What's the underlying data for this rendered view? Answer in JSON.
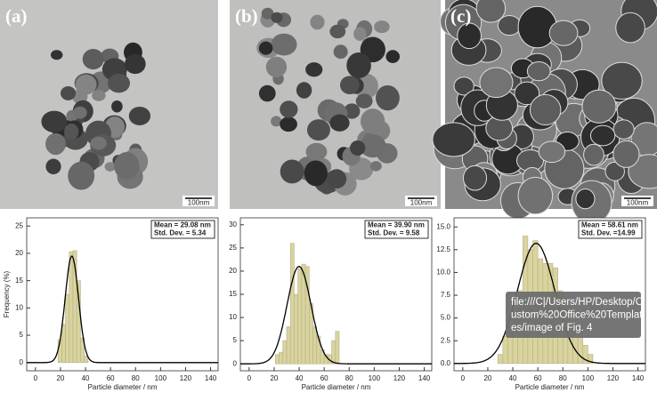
{
  "chart_data": [
    {
      "type": "histogram",
      "panel_label": "(a)",
      "image_scale_label": "100nm",
      "bins": [
        18,
        21,
        24,
        27,
        30,
        33,
        36,
        39,
        42
      ],
      "values": [
        4.2,
        7,
        12.5,
        20.3,
        20.5,
        15,
        4.5,
        1.2
      ],
      "color": "#d9d49c",
      "fit": {
        "mean": 29.08,
        "sd": 5.34,
        "peak": 19.5
      },
      "annotation": [
        "Mean = 29.08 nm",
        "Std. Dev. = 5.34"
      ],
      "xlim": [
        -7,
        146
      ],
      "xticks": [
        0,
        20,
        40,
        60,
        80,
        100,
        120,
        140
      ],
      "ylim": [
        -1.5,
        26.5
      ],
      "yticks": [
        0,
        5,
        10,
        15,
        20,
        25
      ],
      "xlabel": "Particle diameter / nm",
      "ylabel": "Frequency (%)"
    },
    {
      "type": "histogram",
      "panel_label": "(b)",
      "image_scale_label": "100nm",
      "bins": [
        21,
        24,
        27,
        30,
        33,
        36,
        39,
        42,
        45,
        48,
        51,
        54,
        57,
        60,
        63,
        66,
        69,
        72
      ],
      "values": [
        2,
        2.5,
        5,
        8,
        26,
        15,
        20.5,
        21.5,
        21,
        13,
        8,
        6,
        3,
        2,
        2,
        5,
        7
      ],
      "color": "#d9d49c",
      "fit": {
        "mean": 39.9,
        "sd": 9.58,
        "peak": 21
      },
      "annotation": [
        "Mean = 39.90 nm",
        "Std. Dev. = 9.58"
      ],
      "xlim": [
        -7,
        146
      ],
      "xticks": [
        0,
        20,
        40,
        60,
        80,
        100,
        120,
        140
      ],
      "ylim": [
        -1.5,
        31.5
      ],
      "yticks": [
        0,
        5,
        10,
        15,
        20,
        25,
        30
      ],
      "xlabel": "Particle diameter / nm"
    },
    {
      "type": "histogram",
      "panel_label": "(c)",
      "image_scale_label": "100nm",
      "bins": [
        28,
        32,
        36,
        40,
        44,
        48,
        52,
        56,
        60,
        64,
        68,
        72,
        76,
        80,
        84,
        88,
        92,
        96,
        100,
        104
      ],
      "values": [
        1,
        3,
        4,
        5,
        8,
        14,
        12.5,
        13.5,
        11.5,
        11,
        11,
        10.5,
        8,
        7,
        6,
        4,
        3,
        2,
        1
      ],
      "color": "#d9d49c",
      "fit": {
        "mean": 58.61,
        "sd": 14.99,
        "peak": 13.2
      },
      "annotation": [
        "Mean = 58.61 nm",
        "Std. Dev. =14.99"
      ],
      "xlim": [
        -7,
        146
      ],
      "xticks": [
        0,
        20,
        40,
        60,
        80,
        100,
        120,
        140
      ],
      "ylim": [
        -0.8,
        16
      ],
      "yticks": [
        {
          "value": 0,
          "label": "0.0"
        },
        {
          "value": 2.5,
          "label": "2.5"
        },
        {
          "value": 5,
          "label": "5.0"
        },
        {
          "value": 7.5,
          "label": "7.5"
        },
        {
          "value": 10,
          "label": "10.0"
        },
        {
          "value": 12.5,
          "label": "12.5"
        },
        {
          "value": 15,
          "label": "15.0"
        }
      ],
      "xlabel": "Particle diameter / nm"
    }
  ],
  "tooltip": {
    "lines": [
      "file:///C|/Users/HP/Desktop/C",
      "ustom%20Office%20Templat",
      "es/image of Fig. 4"
    ]
  }
}
